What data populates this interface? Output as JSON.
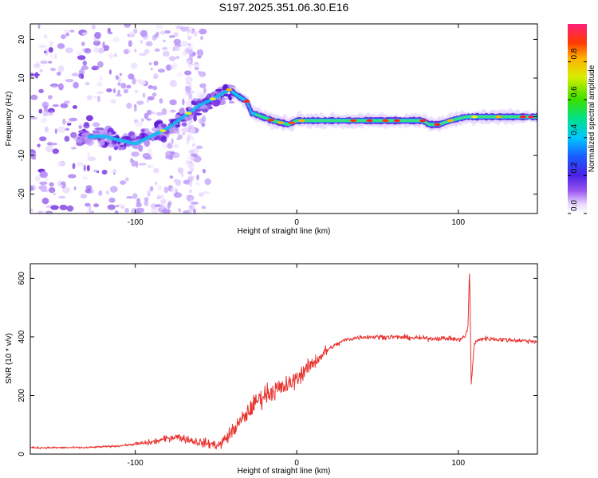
{
  "title": "S197.2025.351.06.30.E16",
  "chart_data": [
    {
      "type": "heatmap",
      "title": "S197.2025.351.06.30.E16",
      "xlabel": "Height of straight line (km)",
      "ylabel": "Frequency (Hz)",
      "xlim": [
        -165,
        149
      ],
      "ylim": [
        -25,
        24
      ],
      "xticks": [
        -100,
        0,
        100
      ],
      "yticks": [
        -20,
        -10,
        0,
        10,
        20
      ],
      "ridge": {
        "x": [
          -165,
          -120,
          -100,
          -80,
          -60,
          -50,
          -42,
          -35,
          -31,
          -28,
          -15,
          -5,
          0,
          20,
          60,
          78,
          82,
          88,
          95,
          105,
          149
        ],
        "frequency": [
          -6,
          -5,
          -7,
          -3,
          3,
          5,
          7,
          5,
          4,
          1,
          -1,
          -2,
          -1,
          -1,
          -1,
          -1,
          -2,
          -2,
          -1,
          0,
          0
        ]
      },
      "colorbar": {
        "label": "Normalized spectral amplitude",
        "range": [
          0,
          1
        ],
        "ticks": [
          "0.0",
          "0.2",
          "0.4",
          "0.6",
          "0.8"
        ],
        "tick_values": [
          0.0,
          0.2,
          0.4,
          0.6,
          0.8
        ]
      }
    },
    {
      "type": "line",
      "xlabel": "Height of straight line (km)",
      "ylabel": "SNR (10 * v/v)",
      "xlim": [
        -165,
        149
      ],
      "ylim": [
        0,
        650
      ],
      "xticks": [
        -100,
        0,
        100
      ],
      "yticks": [
        0,
        200,
        400,
        600
      ],
      "series": [
        {
          "name": "SNR",
          "color": "#e8332f",
          "x": [
            -165,
            -150,
            -130,
            -110,
            -90,
            -75,
            -60,
            -48,
            -42,
            -38,
            -32,
            -25,
            -18,
            -12,
            -5,
            0,
            10,
            20,
            30,
            40,
            60,
            80,
            95,
            100,
            104,
            106,
            107,
            108,
            110,
            115,
            130,
            149
          ],
          "y": [
            22,
            22,
            22,
            28,
            40,
            60,
            40,
            30,
            65,
            90,
            130,
            180,
            210,
            220,
            235,
            260,
            310,
            360,
            390,
            400,
            400,
            395,
            395,
            390,
            400,
            430,
            640,
            240,
            380,
            395,
            390,
            385
          ]
        }
      ]
    }
  ]
}
